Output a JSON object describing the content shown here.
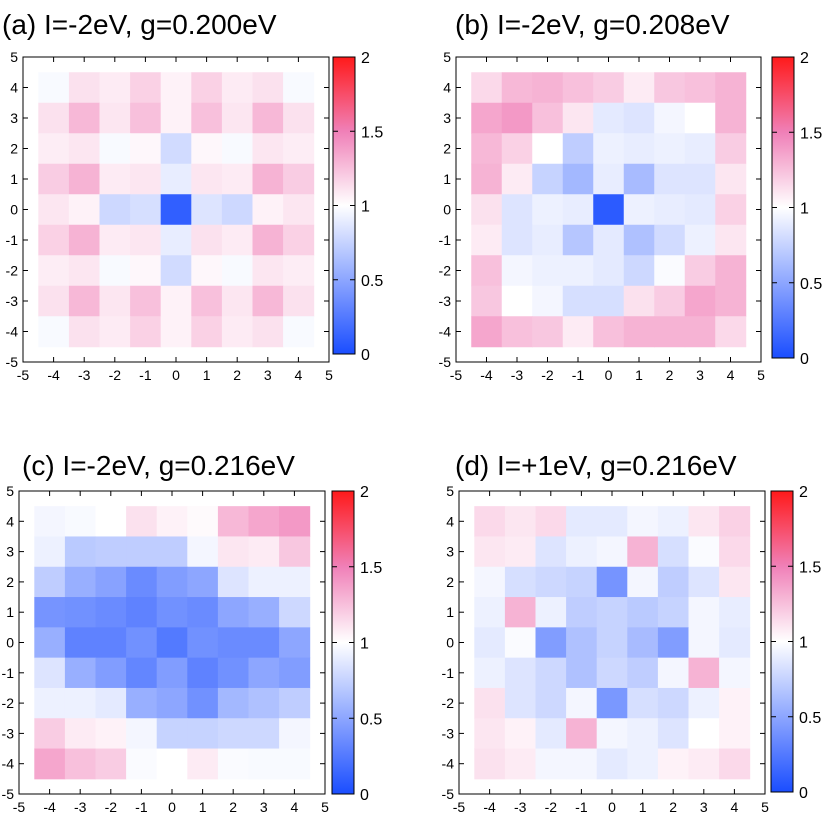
{
  "chart_data": [
    {
      "type": "heatmap",
      "title": "(a) I=-2eV, g=0.200eV",
      "x": [
        -4,
        -3,
        -2,
        -1,
        0,
        1,
        2,
        3,
        4
      ],
      "y": [
        4,
        3,
        2,
        1,
        0,
        -1,
        -2,
        -3,
        -4
      ],
      "xlim": [
        -5,
        5
      ],
      "ylim": [
        -5,
        5
      ],
      "xticks": [
        "-5",
        "-4",
        "-3",
        "-2",
        "-1",
        "0",
        "1",
        "2",
        "3",
        "4",
        "5"
      ],
      "yticks": [
        "5",
        "4",
        "3",
        "2",
        "1",
        "0",
        "-1",
        "-2",
        "-3",
        "-4",
        "-5"
      ],
      "values": [
        [
          0.97,
          1.12,
          1.08,
          1.18,
          1.05,
          1.18,
          1.08,
          1.12,
          0.97
        ],
        [
          1.12,
          1.28,
          1.1,
          1.25,
          1.05,
          1.25,
          1.1,
          1.28,
          1.12
        ],
        [
          1.07,
          1.1,
          0.97,
          1.03,
          0.8,
          1.03,
          0.97,
          1.1,
          1.07
        ],
        [
          1.2,
          1.3,
          1.08,
          1.1,
          0.9,
          1.1,
          1.08,
          1.3,
          1.2
        ],
        [
          1.1,
          1.05,
          0.78,
          0.82,
          0.1,
          0.85,
          0.78,
          1.05,
          1.1
        ],
        [
          1.18,
          1.3,
          1.08,
          1.1,
          0.9,
          1.12,
          1.08,
          1.3,
          1.18
        ],
        [
          1.07,
          1.1,
          0.97,
          1.03,
          0.8,
          1.03,
          0.97,
          1.1,
          1.07
        ],
        [
          1.12,
          1.28,
          1.1,
          1.25,
          1.05,
          1.25,
          1.1,
          1.28,
          1.12
        ],
        [
          0.97,
          1.12,
          1.08,
          1.18,
          1.05,
          1.18,
          1.08,
          1.12,
          0.97
        ]
      ],
      "colorbar": {
        "min": 0,
        "max": 2,
        "ticks": [
          "0",
          "0.5",
          "1",
          "1.5",
          "2"
        ],
        "low_color": "#1a4dff",
        "mid_color": "#ffffff",
        "high_color": "#ff1a1a",
        "pink_color": "#f080b8"
      }
    },
    {
      "type": "heatmap",
      "title": "(b) I=-2eV, g=0.208eV",
      "x": [
        -4,
        -3,
        -2,
        -1,
        0,
        1,
        2,
        3,
        4
      ],
      "y": [
        4,
        3,
        2,
        1,
        0,
        -1,
        -2,
        -3,
        -4
      ],
      "xlim": [
        -5,
        5
      ],
      "ylim": [
        -5,
        5
      ],
      "xticks": [
        "-5",
        "-4",
        "-3",
        "-2",
        "-1",
        "0",
        "1",
        "2",
        "3",
        "4",
        "5"
      ],
      "yticks": [
        "5",
        "4",
        "3",
        "2",
        "1",
        "0",
        "-1",
        "-2",
        "-3",
        "-4",
        "-5"
      ],
      "values": [
        [
          1.15,
          1.28,
          1.3,
          1.25,
          1.2,
          1.08,
          1.22,
          1.25,
          1.3
        ],
        [
          1.35,
          1.4,
          1.25,
          1.1,
          0.88,
          0.85,
          0.95,
          1.0,
          1.3
        ],
        [
          1.28,
          1.18,
          1.0,
          0.72,
          0.92,
          0.9,
          0.92,
          0.9,
          1.2
        ],
        [
          1.3,
          1.08,
          0.75,
          0.6,
          0.9,
          0.62,
          0.85,
          0.85,
          1.1
        ],
        [
          1.12,
          0.85,
          0.92,
          0.9,
          0.08,
          0.92,
          0.9,
          0.88,
          1.18
        ],
        [
          1.08,
          0.85,
          0.9,
          0.68,
          0.88,
          0.65,
          0.8,
          0.92,
          1.1
        ],
        [
          1.25,
          0.95,
          0.92,
          0.92,
          0.88,
          0.78,
          0.98,
          1.2,
          1.3
        ],
        [
          1.22,
          1.0,
          0.95,
          0.82,
          0.82,
          1.12,
          1.2,
          1.35,
          1.3
        ],
        [
          1.35,
          1.25,
          1.22,
          1.08,
          1.25,
          1.3,
          1.3,
          1.3,
          1.15
        ]
      ],
      "colorbar": {
        "min": 0,
        "max": 2,
        "ticks": [
          "0",
          "0.5",
          "1",
          "1.5",
          "2"
        ],
        "low_color": "#1a4dff",
        "mid_color": "#ffffff",
        "high_color": "#ff1a1a",
        "pink_color": "#f080b8"
      }
    },
    {
      "type": "heatmap",
      "title": "(c) I=-2eV, g=0.216eV",
      "x": [
        -4,
        -3,
        -2,
        -1,
        0,
        1,
        2,
        3,
        4
      ],
      "y": [
        4,
        3,
        2,
        1,
        0,
        -1,
        -2,
        -3,
        -4
      ],
      "xlim": [
        -5,
        5
      ],
      "ylim": [
        -5,
        5
      ],
      "xticks": [
        "-5",
        "-4",
        "-3",
        "-2",
        "-1",
        "0",
        "1",
        "2",
        "3",
        "4",
        "5"
      ],
      "yticks": [
        "5",
        "4",
        "3",
        "2",
        "1",
        "0",
        "-1",
        "-2",
        "-3",
        "-4",
        "-5"
      ],
      "values": [
        [
          0.95,
          0.97,
          1.0,
          1.12,
          1.05,
          1.02,
          1.28,
          1.35,
          1.4
        ],
        [
          0.92,
          0.7,
          0.72,
          0.72,
          0.72,
          0.95,
          1.1,
          1.08,
          1.22
        ],
        [
          0.72,
          0.55,
          0.48,
          0.35,
          0.45,
          0.5,
          0.85,
          0.92,
          0.92
        ],
        [
          0.4,
          0.38,
          0.35,
          0.3,
          0.38,
          0.35,
          0.5,
          0.55,
          0.78
        ],
        [
          0.55,
          0.3,
          0.3,
          0.38,
          0.25,
          0.38,
          0.35,
          0.35,
          0.5
        ],
        [
          0.85,
          0.55,
          0.45,
          0.32,
          0.45,
          0.3,
          0.38,
          0.5,
          0.45
        ],
        [
          0.92,
          0.92,
          0.88,
          0.55,
          0.5,
          0.38,
          0.6,
          0.65,
          0.72
        ],
        [
          1.2,
          1.08,
          1.05,
          0.95,
          0.75,
          0.75,
          0.78,
          0.78,
          0.95
        ],
        [
          1.35,
          1.25,
          1.2,
          0.98,
          1.0,
          1.08,
          0.98,
          0.97,
          0.97
        ]
      ],
      "colorbar": {
        "min": 0,
        "max": 2,
        "ticks": [
          "0",
          "0.5",
          "1",
          "1.5",
          "2"
        ],
        "low_color": "#1a4dff",
        "mid_color": "#ffffff",
        "high_color": "#ff1a1a",
        "pink_color": "#f080b8"
      }
    },
    {
      "type": "heatmap",
      "title": "(d) I=+1eV, g=0.216eV",
      "x": [
        -4,
        -3,
        -2,
        -1,
        0,
        1,
        2,
        3,
        4
      ],
      "y": [
        4,
        3,
        2,
        1,
        0,
        -1,
        -2,
        -3,
        -4
      ],
      "xlim": [
        -5,
        5
      ],
      "ylim": [
        -5,
        5
      ],
      "xticks": [
        "-5",
        "-4",
        "-3",
        "-2",
        "-1",
        "0",
        "1",
        "2",
        "3",
        "4",
        "5"
      ],
      "yticks": [
        "5",
        "4",
        "3",
        "2",
        "1",
        "0",
        "-1",
        "-2",
        "-3",
        "-4",
        "-5"
      ],
      "values": [
        [
          1.15,
          1.1,
          1.15,
          0.88,
          0.88,
          0.95,
          0.92,
          1.1,
          1.18
        ],
        [
          1.1,
          1.08,
          0.85,
          0.92,
          0.95,
          1.3,
          0.82,
          0.98,
          1.15
        ],
        [
          0.95,
          0.82,
          0.78,
          0.75,
          0.4,
          0.95,
          0.72,
          0.85,
          1.1
        ],
        [
          0.92,
          1.3,
          0.92,
          0.72,
          0.75,
          0.7,
          0.75,
          0.95,
          0.9
        ],
        [
          0.88,
          0.98,
          0.45,
          0.65,
          0.75,
          0.62,
          0.45,
          0.95,
          0.88
        ],
        [
          0.92,
          0.85,
          0.78,
          0.65,
          0.78,
          0.72,
          0.95,
          1.3,
          0.95
        ],
        [
          1.12,
          0.85,
          0.78,
          0.95,
          0.42,
          0.82,
          0.78,
          0.92,
          1.05
        ],
        [
          1.1,
          1.05,
          0.88,
          1.3,
          0.95,
          0.92,
          0.85,
          1.0,
          1.05
        ],
        [
          1.12,
          1.08,
          0.95,
          0.95,
          0.88,
          0.92,
          1.05,
          1.08,
          1.15
        ]
      ],
      "colorbar": {
        "min": 0,
        "max": 2,
        "ticks": [
          "0",
          "0.5",
          "1",
          "1.5",
          "2"
        ],
        "low_color": "#1a4dff",
        "mid_color": "#ffffff",
        "high_color": "#ff1a1a",
        "pink_color": "#f080b8"
      }
    }
  ]
}
